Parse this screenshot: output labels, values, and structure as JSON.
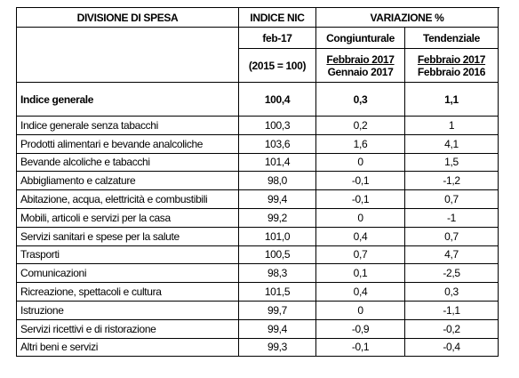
{
  "table": {
    "header": [
      [
        "DIVISIONE DI SPESA",
        "INDICE NIC",
        "VARIAZIONE %"
      ],
      [
        "feb-17",
        "Congiunturale",
        "Tendenziale"
      ],
      [
        "(2015 = 100)",
        {
          "top": "Febbraio 2017",
          "bottom": "Gennaio 2017"
        },
        {
          "top": "Febbraio 2017",
          "bottom": "Febbraio 2016"
        }
      ]
    ],
    "total": [
      "Indice generale",
      "100,4",
      "0,3",
      "1,1"
    ],
    "rows": [
      [
        "Indice generale senza tabacchi",
        "100,3",
        "0,2",
        "1"
      ],
      [
        "Prodotti alimentari e bevande analcoliche",
        "103,6",
        "1,6",
        "4,1"
      ],
      [
        "Bevande alcoliche e tabacchi",
        "101,4",
        "0",
        "1,5"
      ],
      [
        "Abbigliamento e calzature",
        "98,0",
        "-0,1",
        "-1,2"
      ],
      [
        "Abitazione, acqua, elettricità e combustibili",
        "99,4",
        "-0,1",
        "0,7"
      ],
      [
        "Mobili, articoli e servizi per la casa",
        "99,2",
        "0",
        "-1"
      ],
      [
        "Servizi sanitari e spese per la salute",
        "101,0",
        "0,4",
        "0,7"
      ],
      [
        "Trasporti",
        "100,5",
        "0,7",
        "4,7"
      ],
      [
        "Comunicazioni",
        "98,3",
        "0,1",
        "-2,5"
      ],
      [
        "Ricreazione, spettacoli e cultura",
        "101,5",
        "0,4",
        "0,3"
      ],
      [
        "Istruzione",
        "99,7",
        "0",
        "-1,1"
      ],
      [
        "Servizi ricettivi e di ristorazione",
        "99,4",
        "-0,9",
        "-0,2"
      ],
      [
        "Altri beni e servizi",
        "99,3",
        "-0,1",
        "-0,4"
      ]
    ]
  }
}
